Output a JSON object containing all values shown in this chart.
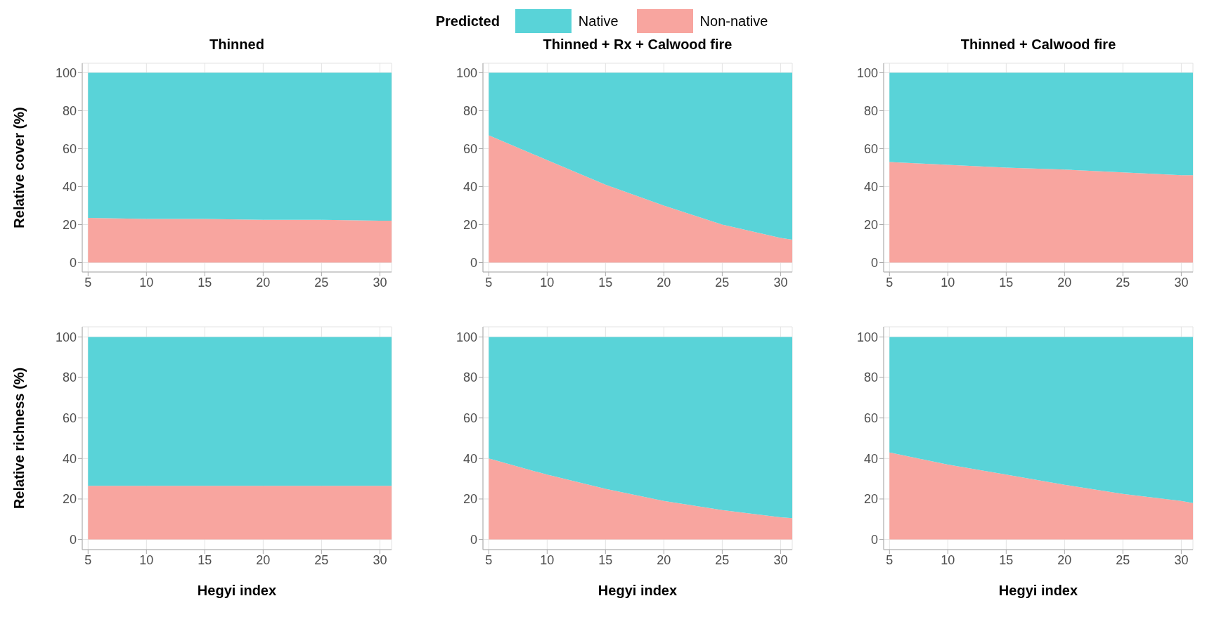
{
  "chart_data": [
    {
      "type": "area",
      "title": "Thinned",
      "ylabel": "Relative cover (%)",
      "stacked": true,
      "grid": true,
      "legend": "top",
      "legend_title": "Predicted",
      "x": [
        5,
        10,
        15,
        20,
        25,
        30,
        31
      ],
      "xlim": [
        4.5,
        31
      ],
      "xticks": [
        5,
        10,
        15,
        20,
        25,
        30
      ],
      "ylim": [
        -5,
        105
      ],
      "yticks": [
        0,
        20,
        40,
        60,
        80,
        100
      ],
      "series": [
        {
          "name": "Non-native",
          "color": "#f8a59f",
          "values": [
            23.5,
            23,
            23,
            22.5,
            22.5,
            22,
            22
          ]
        },
        {
          "name": "Native",
          "color": "#59d3d8",
          "values": [
            76.5,
            77,
            77,
            77.5,
            77.5,
            78,
            78
          ]
        }
      ]
    },
    {
      "type": "area",
      "title": "Thinned + Rx + Calwood fire",
      "stacked": true,
      "grid": true,
      "x": [
        5,
        10,
        15,
        20,
        25,
        30,
        31
      ],
      "xlim": [
        4.5,
        31
      ],
      "xticks": [
        5,
        10,
        15,
        20,
        25,
        30
      ],
      "ylim": [
        -5,
        105
      ],
      "yticks": [
        0,
        20,
        40,
        60,
        80,
        100
      ],
      "series": [
        {
          "color": "#f8a59f",
          "values": [
            67,
            54,
            41,
            30,
            20,
            13,
            12
          ]
        },
        {
          "color": "#59d3d8",
          "values": [
            33,
            46,
            59,
            70,
            80,
            87,
            88
          ]
        }
      ]
    },
    {
      "type": "area",
      "title": "Thinned + Calwood fire",
      "stacked": true,
      "grid": true,
      "x": [
        5,
        10,
        15,
        20,
        25,
        30,
        31
      ],
      "xlim": [
        4.5,
        31
      ],
      "xticks": [
        5,
        10,
        15,
        20,
        25,
        30
      ],
      "ylim": [
        -5,
        105
      ],
      "yticks": [
        0,
        20,
        40,
        60,
        80,
        100
      ],
      "series": [
        {
          "color": "#f8a59f",
          "values": [
            53,
            51.5,
            50,
            49,
            47.5,
            46,
            46
          ]
        },
        {
          "color": "#59d3d8",
          "values": [
            47,
            48.5,
            50,
            51,
            52.5,
            54,
            54
          ]
        }
      ]
    },
    {
      "type": "area",
      "xlabel": "Hegyi index",
      "ylabel": "Relative richness (%)",
      "stacked": true,
      "grid": true,
      "x": [
        5,
        10,
        15,
        20,
        25,
        30,
        31
      ],
      "xlim": [
        4.5,
        31
      ],
      "xticks": [
        5,
        10,
        15,
        20,
        25,
        30
      ],
      "ylim": [
        -5,
        105
      ],
      "yticks": [
        0,
        20,
        40,
        60,
        80,
        100
      ],
      "series": [
        {
          "color": "#f8a59f",
          "values": [
            26.5,
            26.5,
            26.5,
            26.5,
            26.5,
            26.5,
            26.5
          ]
        },
        {
          "color": "#59d3d8",
          "values": [
            73.5,
            73.5,
            73.5,
            73.5,
            73.5,
            73.5,
            73.5
          ]
        }
      ]
    },
    {
      "type": "area",
      "xlabel": "Hegyi index",
      "stacked": true,
      "grid": true,
      "x": [
        5,
        10,
        15,
        20,
        25,
        30,
        31
      ],
      "xlim": [
        4.5,
        31
      ],
      "xticks": [
        5,
        10,
        15,
        20,
        25,
        30
      ],
      "ylim": [
        -5,
        105
      ],
      "yticks": [
        0,
        20,
        40,
        60,
        80,
        100
      ],
      "series": [
        {
          "color": "#f8a59f",
          "values": [
            40,
            32,
            25,
            19,
            14.5,
            11,
            10.5
          ]
        },
        {
          "color": "#59d3d8",
          "values": [
            60,
            68,
            75,
            81,
            85.5,
            89,
            89.5
          ]
        }
      ]
    },
    {
      "type": "area",
      "xlabel": "Hegyi index",
      "stacked": true,
      "grid": true,
      "x": [
        5,
        10,
        15,
        20,
        25,
        30,
        31
      ],
      "xlim": [
        4.5,
        31
      ],
      "xticks": [
        5,
        10,
        15,
        20,
        25,
        30
      ],
      "ylim": [
        -5,
        105
      ],
      "yticks": [
        0,
        20,
        40,
        60,
        80,
        100
      ],
      "series": [
        {
          "color": "#f8a59f",
          "values": [
            43,
            37,
            32,
            27,
            22.5,
            19,
            18
          ]
        },
        {
          "color": "#59d3d8",
          "values": [
            57,
            63,
            68,
            73,
            77.5,
            81,
            82
          ]
        }
      ]
    }
  ]
}
